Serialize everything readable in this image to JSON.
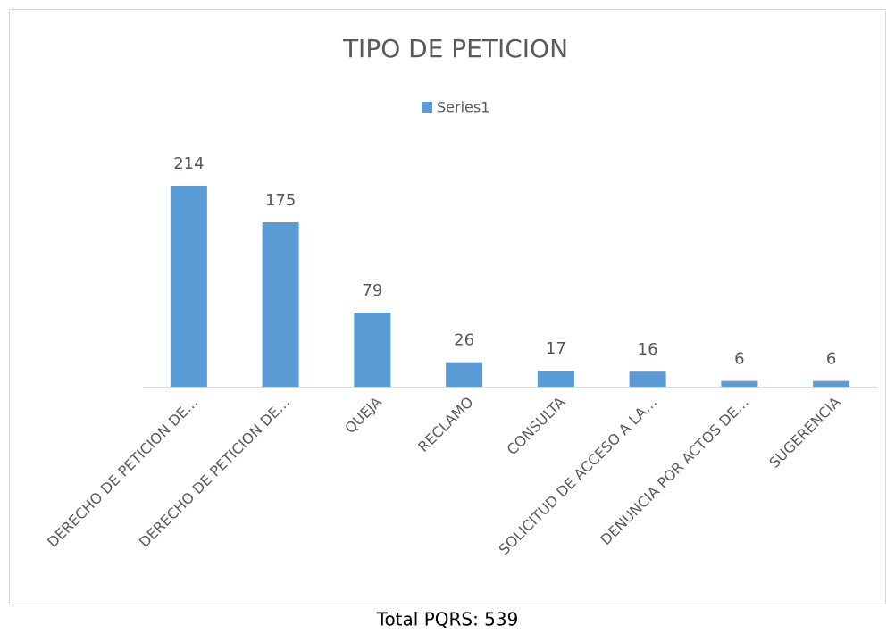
{
  "chart_data": {
    "type": "bar",
    "title": "TIPO DE PETICION",
    "categories": [
      "DERECHO DE PETICION DE…",
      "DERECHO DE PETICION DE…",
      "QUEJA",
      "RECLAMO",
      "CONSULTA",
      "SOLICITUD DE ACCESO A LA…",
      "DENUNCIA POR ACTOS DE…",
      "SUGERENCIA"
    ],
    "series": [
      {
        "name": "Series1",
        "color": "#5b9bd5",
        "values": [
          214,
          175,
          79,
          26,
          17,
          16,
          6,
          6
        ]
      }
    ],
    "legend": "top"
  },
  "footer": "Total PQRS: 539"
}
